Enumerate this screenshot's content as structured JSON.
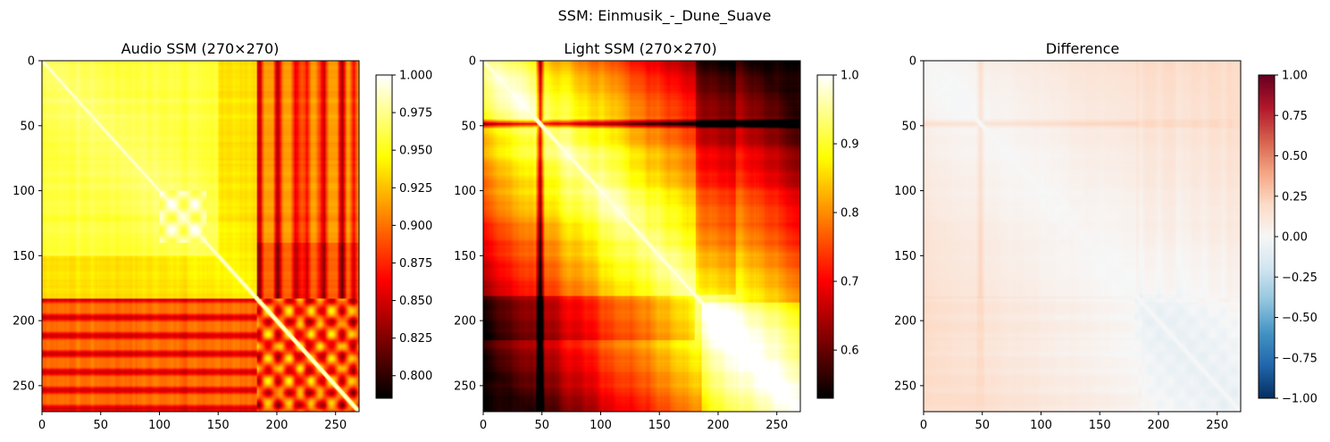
{
  "suptitle": "SSM: Einmusik_-_Dune_Suave",
  "chart_data": [
    {
      "type": "heatmap",
      "title": "Audio SSM (270×270)",
      "size": 270,
      "colormap": "hot",
      "xlim": [
        0,
        270
      ],
      "ylim": [
        270,
        0
      ],
      "x_ticks": [
        0,
        50,
        100,
        150,
        200,
        250
      ],
      "y_ticks": [
        0,
        50,
        100,
        150,
        200,
        250
      ],
      "colorbar": {
        "min": 0.785,
        "max": 1.0,
        "ticks": [
          "1.000",
          "0.975",
          "0.950",
          "0.925",
          "0.900",
          "0.875",
          "0.850",
          "0.825",
          "0.800"
        ],
        "tick_values": [
          1.0,
          0.975,
          0.95,
          0.925,
          0.9,
          0.875,
          0.85,
          0.825,
          0.8
        ]
      },
      "segment_boundaries": [
        100,
        140,
        160,
        183
      ],
      "bands": [
        {
          "start": 0,
          "end": 100,
          "mean": 0.955
        },
        {
          "start": 100,
          "end": 140,
          "mean": 0.96
        },
        {
          "start": 140,
          "end": 183,
          "mean": 0.93
        },
        {
          "start": 183,
          "end": 270,
          "mean": 0.87
        }
      ],
      "strong_lines": [
        185,
        200,
        215,
        225,
        240,
        255,
        265
      ]
    },
    {
      "type": "heatmap",
      "title": "Light SSM (270×270)",
      "size": 270,
      "colormap": "hot",
      "xlim": [
        0,
        270
      ],
      "ylim": [
        270,
        0
      ],
      "x_ticks": [
        0,
        50,
        100,
        150,
        200,
        250
      ],
      "y_ticks": [
        0,
        50,
        100,
        150,
        200,
        250
      ],
      "colorbar": {
        "min": 0.53,
        "max": 1.0,
        "ticks": [
          "1.0",
          "0.9",
          "0.8",
          "0.7",
          "0.6"
        ],
        "tick_values": [
          1.0,
          0.9,
          0.8,
          0.7,
          0.6
        ]
      },
      "dark_lines": [
        48
      ],
      "segment_boundaries": [
        48,
        120,
        185,
        210
      ],
      "bands": [
        {
          "start": 0,
          "end": 48,
          "mean": 0.86
        },
        {
          "start": 48,
          "end": 120,
          "mean": 0.85
        },
        {
          "start": 120,
          "end": 185,
          "mean": 0.8
        },
        {
          "start": 185,
          "end": 270,
          "mean": 0.74
        }
      ]
    },
    {
      "type": "heatmap",
      "title": "Difference",
      "size": 270,
      "colormap": "RdBu_r",
      "xlim": [
        0,
        270
      ],
      "ylim": [
        270,
        0
      ],
      "x_ticks": [
        0,
        50,
        100,
        150,
        200,
        250
      ],
      "y_ticks": [
        0,
        50,
        100,
        150,
        200,
        250
      ],
      "colorbar": {
        "min": -1.0,
        "max": 1.0,
        "ticks": [
          "1.00",
          "0.75",
          "0.50",
          "0.25",
          "0.00",
          "−0.25",
          "−0.50",
          "−0.75",
          "−1.00"
        ],
        "tick_values": [
          1.0,
          0.75,
          0.5,
          0.25,
          0.0,
          -0.25,
          -0.5,
          -0.75,
          -1.0
        ]
      },
      "value_range_observed": [
        -0.08,
        0.3
      ]
    }
  ]
}
